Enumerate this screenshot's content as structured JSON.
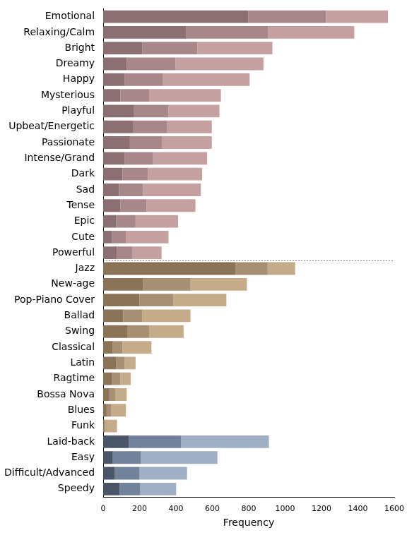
{
  "chart_data": {
    "type": "bar",
    "orientation": "horizontal",
    "stacked": true,
    "grid": false,
    "x_label": "Frequency",
    "xlim": [
      0,
      1600
    ],
    "xticks": [
      0,
      200,
      400,
      600,
      800,
      1000,
      1200,
      1400,
      1600
    ],
    "categories": [
      "Emotional",
      "Relaxing/Calm",
      "Bright",
      "Dreamy",
      "Happy",
      "Mysterious",
      "Playful",
      "Upbeat/Energetic",
      "Passionate",
      "Intense/Grand",
      "Dark",
      "Sad",
      "Tense",
      "Epic",
      "Cute",
      "Powerful",
      "Jazz",
      "New-age",
      "Pop-Piano Cover",
      "Ballad",
      "Swing",
      "Classical",
      "Latin",
      "Ragtime",
      "Bossa Nova",
      "Blues",
      "Funk",
      "Laid-back",
      "Easy",
      "Difficult/Advanced",
      "Speedy"
    ],
    "series": [
      {
        "values": [
          798,
          457,
          215,
          129,
          117,
          95,
          170,
          166,
          147,
          117,
          106,
          87,
          95,
          72,
          49,
          76,
          726,
          219,
          200,
          110,
          132,
          53,
          72,
          49,
          34,
          19,
          4,
          140,
          53,
          64,
          91
        ],
        "colors": [
          "#8b6f72",
          "#8b6f72",
          "#8b6f72",
          "#8b6f72",
          "#8b6f72",
          "#8b6f72",
          "#8b6f72",
          "#8b6f72",
          "#8b6f72",
          "#8b6f72",
          "#8b6f72",
          "#8b6f72",
          "#8b6f72",
          "#8b6f72",
          "#8b6f72",
          "#8b6f72",
          "#8b7358",
          "#8b7358",
          "#8b7358",
          "#8b7358",
          "#8b7358",
          "#8b7358",
          "#8b7358",
          "#8b7358",
          "#8b7358",
          "#8b7358",
          "#8b7358",
          "#4a5668",
          "#4a5668",
          "#4a5668",
          "#4a5668"
        ]
      },
      {
        "values": [
          427,
          450,
          303,
          268,
          212,
          158,
          189,
          186,
          178,
          155,
          140,
          132,
          143,
          106,
          76,
          83,
          178,
          261,
          186,
          105,
          121,
          53,
          45,
          46,
          34,
          26,
          7,
          287,
          155,
          136,
          113
        ],
        "colors": [
          "#a8878a",
          "#a8878a",
          "#a8878a",
          "#a8878a",
          "#a8878a",
          "#a8878a",
          "#a8878a",
          "#a8878a",
          "#a8878a",
          "#a8878a",
          "#a8878a",
          "#a8878a",
          "#a8878a",
          "#a8878a",
          "#a8878a",
          "#a8878a",
          "#a68f72",
          "#a68f72",
          "#a68f72",
          "#a68f72",
          "#a68f72",
          "#a68f72",
          "#a68f72",
          "#a68f72",
          "#a68f72",
          "#a68f72",
          "#a68f72",
          "#72829a",
          "#72829a",
          "#72829a",
          "#72829a"
        ]
      },
      {
        "values": [
          340,
          473,
          412,
          484,
          476,
          394,
          280,
          245,
          272,
          299,
          298,
          318,
          269,
          234,
          234,
          162,
          151,
          310,
          291,
          265,
          189,
          159,
          61,
          56,
          61,
          80,
          65,
          484,
          420,
          261,
          197
        ],
        "colors": [
          "#c4a0a1",
          "#c4a0a1",
          "#c4a0a1",
          "#c4a0a1",
          "#c4a0a1",
          "#c4a0a1",
          "#c4a0a1",
          "#c4a0a1",
          "#c4a0a1",
          "#c4a0a1",
          "#c4a0a1",
          "#c4a0a1",
          "#c4a0a1",
          "#c4a0a1",
          "#c4a0a1",
          "#c4a0a1",
          "#c4ab8a",
          "#c4ab8a",
          "#c4ab8a",
          "#c4ab8a",
          "#c4ab8a",
          "#c4ab8a",
          "#c4ab8a",
          "#c4ab8a",
          "#c4ab8a",
          "#c4ab8a",
          "#c4ab8a",
          "#a0afc3",
          "#a0afc3",
          "#a0afc3",
          "#a0afc3"
        ]
      }
    ]
  }
}
